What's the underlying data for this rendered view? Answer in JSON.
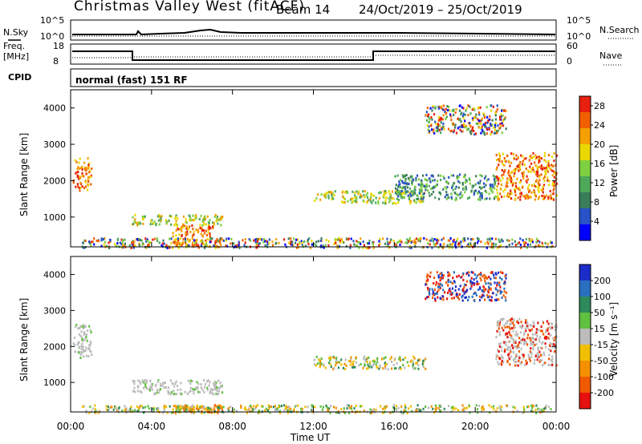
{
  "header": {
    "title": "Christmas Valley West (fitACF)",
    "beam": "Beam 14",
    "dates": "24/Oct/2019 – 25/Oct/2019"
  },
  "top_panels": {
    "nsky_label": "N.Sky",
    "nsearch_label": "N.Search",
    "tick_high": "10^5",
    "tick_low": "10^0",
    "freq_label_1": "Freq.",
    "freq_label_2": "[MHz]",
    "freq_ticks": [
      "18",
      "8"
    ],
    "nave_label": "Nave",
    "nave_ticks": [
      "60",
      "0"
    ],
    "cpid_label": "CPID",
    "cpid_text": "normal (fast) 151 RF"
  },
  "chart_data": [
    {
      "type": "heatmap",
      "panel": "power",
      "ylabel": "Slant Range [km]",
      "xlabel": "",
      "y_ticks": [
        "1000",
        "2000",
        "3000",
        "4000"
      ],
      "ylim": [
        180,
        4500
      ],
      "xlim": [
        0,
        24
      ],
      "colorbar": {
        "label": "Power [dB]",
        "ticks": [
          "4",
          "8",
          "12",
          "16",
          "20",
          "24",
          "28"
        ],
        "range": [
          0,
          30
        ],
        "colors": [
          "#0000ff",
          "#2952c8",
          "#3a7d5a",
          "#4ea85a",
          "#7ed040",
          "#e8d800",
          "#f5a000",
          "#f06000",
          "#e82010"
        ]
      },
      "regions": [
        {
          "t": [
            0.1,
            1.0
          ],
          "r": [
            1750,
            2650
          ],
          "level": "high"
        },
        {
          "t": [
            3.0,
            7.5
          ],
          "r": [
            800,
            1100
          ],
          "level": "medium"
        },
        {
          "t": [
            5.0,
            7.0
          ],
          "r": [
            500,
            800
          ],
          "level": "high"
        },
        {
          "t": [
            5.0,
            7.5
          ],
          "r": [
            180,
            450
          ],
          "level": "high"
        },
        {
          "t": [
            0.5,
            23.8
          ],
          "r": [
            180,
            450
          ],
          "level": "mixed"
        },
        {
          "t": [
            12.0,
            17.5
          ],
          "r": [
            1400,
            1750
          ],
          "level": "medium"
        },
        {
          "t": [
            17.5,
            21.5
          ],
          "r": [
            3300,
            4100
          ],
          "level": "mixed"
        },
        {
          "t": [
            21.0,
            24.0
          ],
          "r": [
            1500,
            2800
          ],
          "level": "high"
        },
        {
          "t": [
            16.0,
            21.0
          ],
          "r": [
            1500,
            2200
          ],
          "level": "low"
        }
      ]
    },
    {
      "type": "heatmap",
      "panel": "velocity",
      "ylabel": "Slant Range [km]",
      "xlabel": "Time UT",
      "x_ticks": [
        "00:00",
        "04:00",
        "08:00",
        "12:00",
        "16:00",
        "20:00",
        "00:00"
      ],
      "y_ticks": [
        "1000",
        "2000",
        "3000",
        "4000"
      ],
      "ylim": [
        180,
        4500
      ],
      "xlim": [
        0,
        24
      ],
      "colorbar": {
        "label": "Velocity [m s⁻¹]",
        "ticks": [
          "200",
          "100",
          "50",
          "15",
          "-15",
          "-50",
          "-100",
          "-200"
        ],
        "range": [
          -250,
          250
        ],
        "colors": [
          "#1c2cc8",
          "#2a70c0",
          "#2e8a5a",
          "#60c040",
          "#bcbcbc",
          "#f0c000",
          "#f59000",
          "#f05a00",
          "#e61010"
        ]
      },
      "regions": [
        {
          "t": [
            0.1,
            1.0
          ],
          "r": [
            1700,
            2650
          ],
          "level": "gray"
        },
        {
          "t": [
            3.0,
            7.5
          ],
          "r": [
            700,
            1100
          ],
          "level": "gray"
        },
        {
          "t": [
            5.0,
            7.5
          ],
          "r": [
            180,
            400
          ],
          "level": "orange"
        },
        {
          "t": [
            0.5,
            23.8
          ],
          "r": [
            180,
            400
          ],
          "level": "mixed"
        },
        {
          "t": [
            12.0,
            17.5
          ],
          "r": [
            1400,
            1750
          ],
          "level": "mixed"
        },
        {
          "t": [
            17.5,
            21.5
          ],
          "r": [
            3300,
            4100
          ],
          "level": "redblue"
        },
        {
          "t": [
            21.0,
            24.0
          ],
          "r": [
            1500,
            2800
          ],
          "level": "grayred"
        }
      ]
    }
  ]
}
